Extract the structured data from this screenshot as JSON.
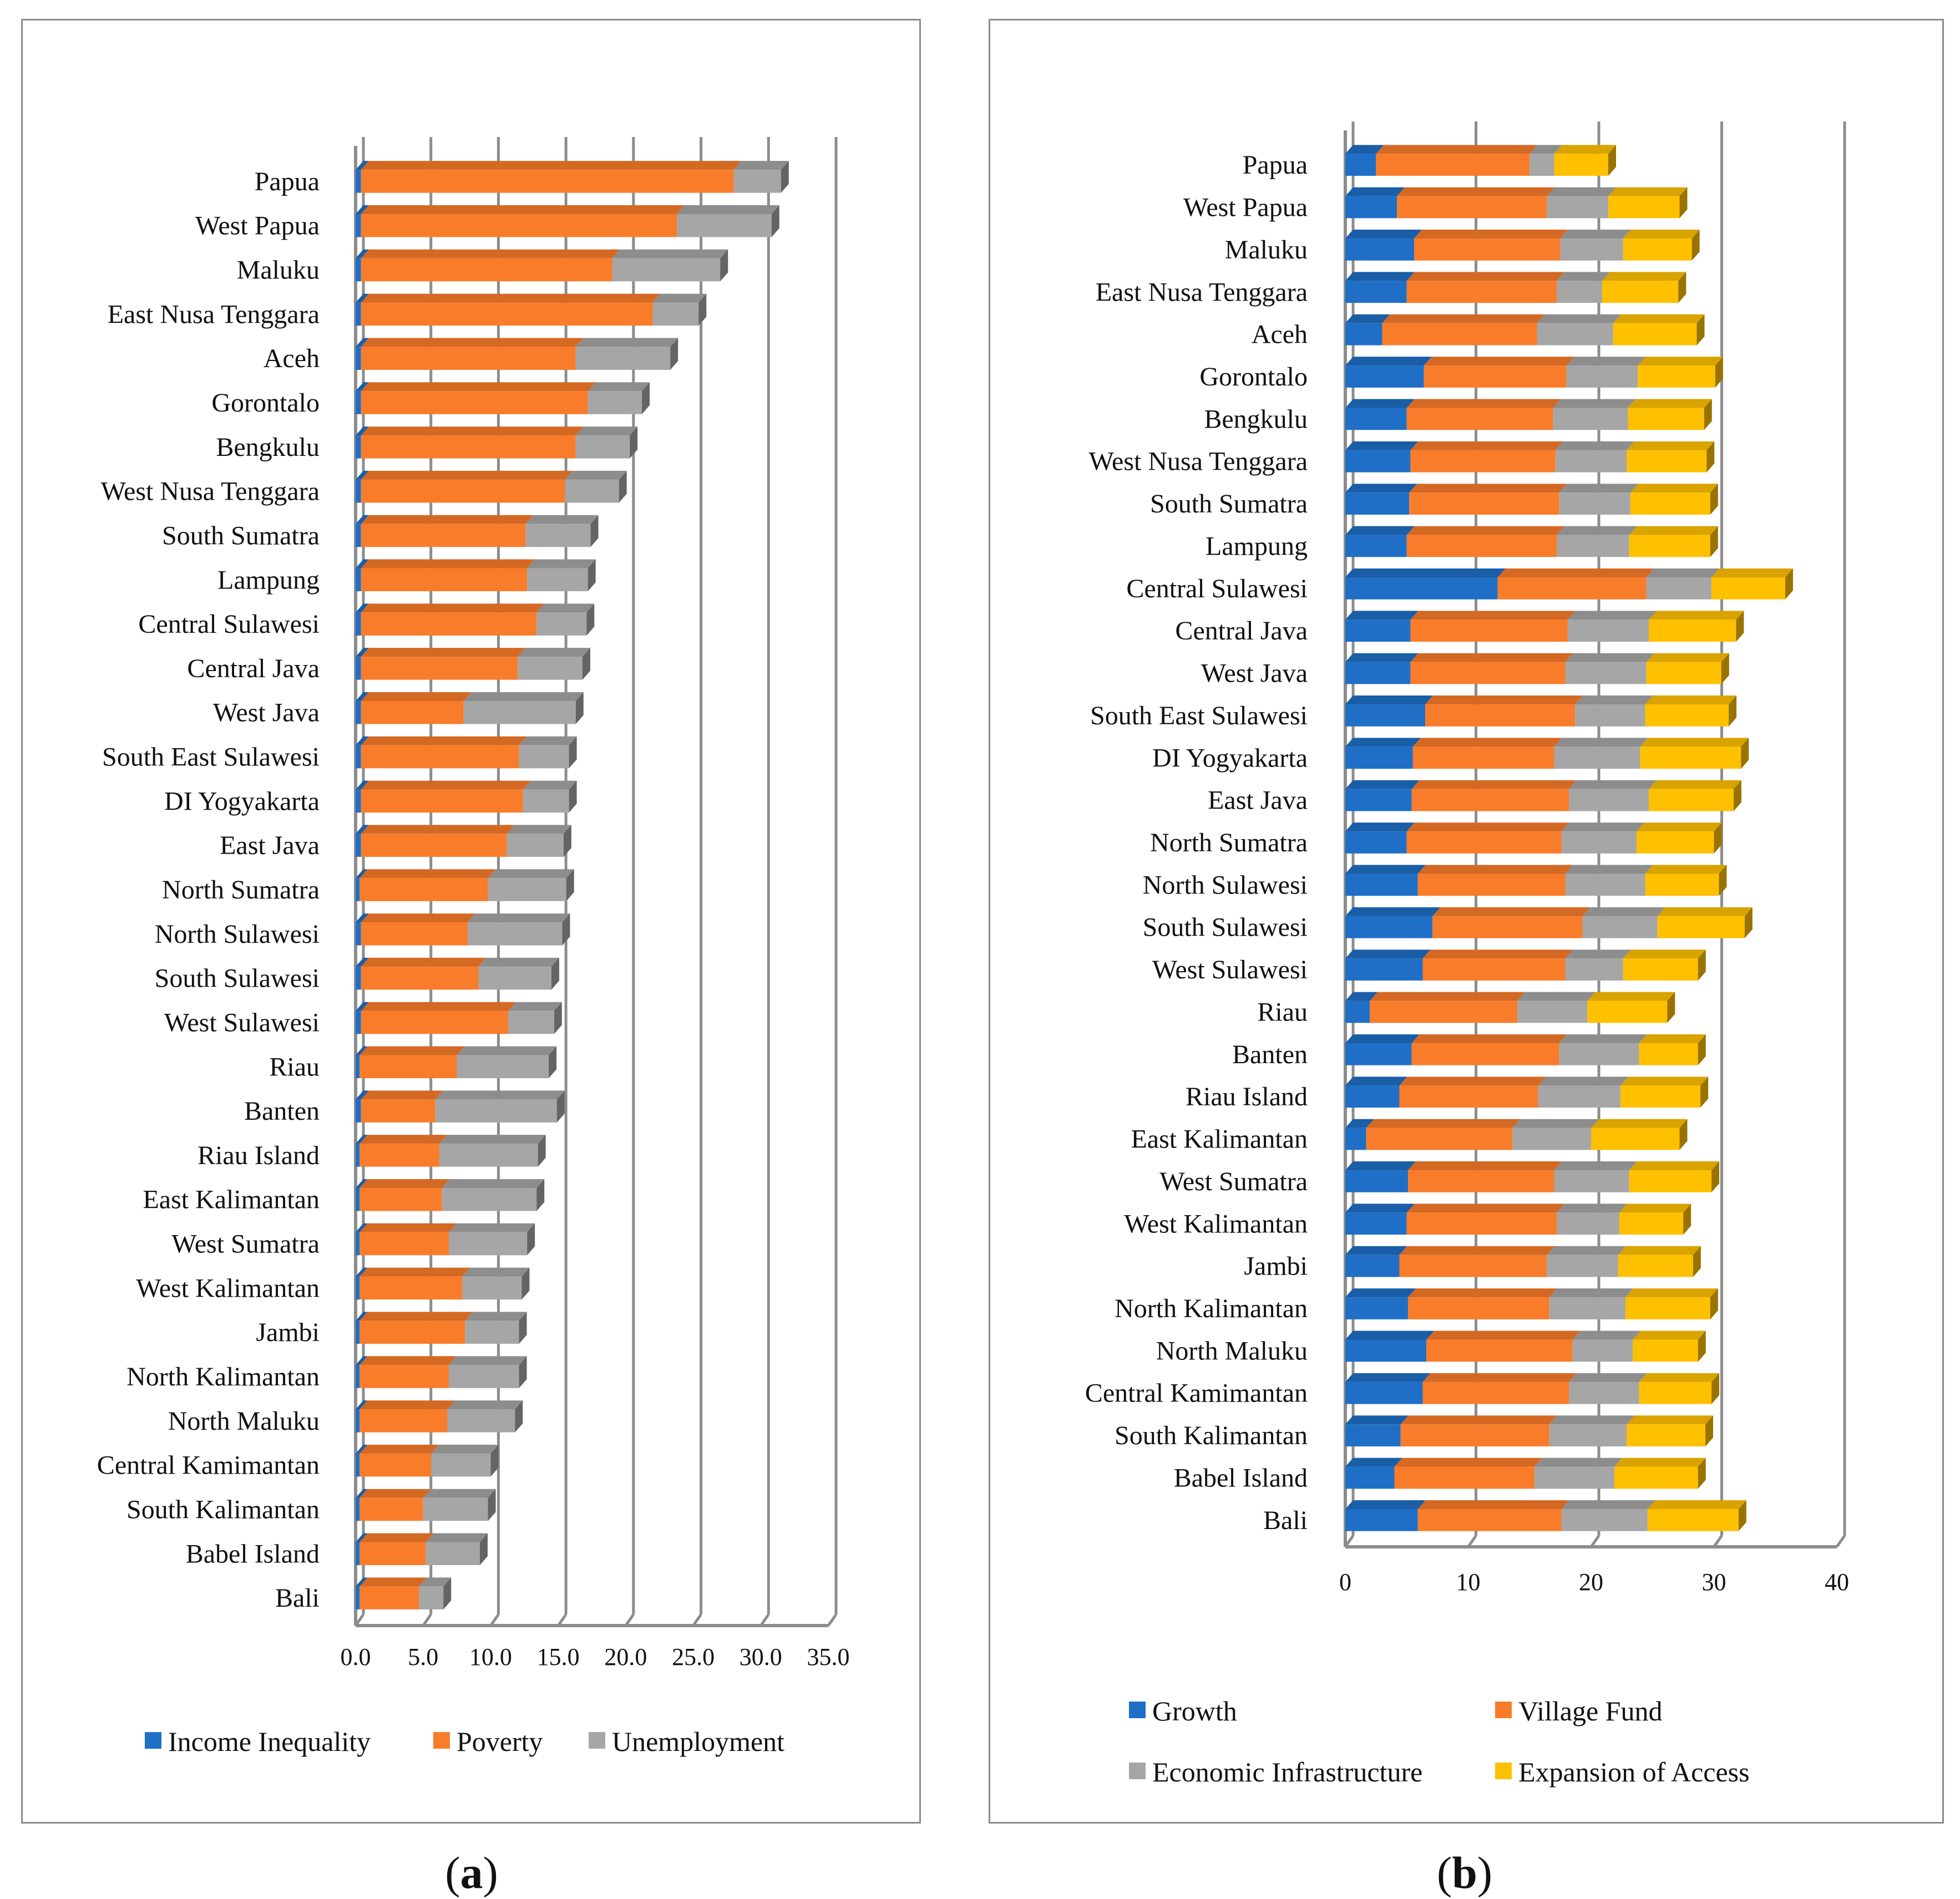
{
  "captions": {
    "a_open": "(",
    "a_letter": "a",
    "a_close": ")",
    "b_open": "(",
    "b_letter": "b",
    "b_close": ")"
  },
  "chart_data": [
    {
      "id": "a",
      "type": "bar",
      "stacked": true,
      "orientation": "horizontal",
      "title": "",
      "xlabel": "",
      "ylabel": "",
      "xlim": [
        0,
        35
      ],
      "xticks": [
        "0.0",
        "5.0",
        "10.0",
        "15.0",
        "20.0",
        "25.0",
        "30.0",
        "35.0"
      ],
      "legend": "bottom",
      "colors": [
        "#1f6fc6",
        "#f97c2a",
        "#a6a6a6"
      ],
      "categories": [
        "Papua",
        "West Papua",
        "Maluku",
        "East Nusa Tenggara",
        "Aceh",
        "Gorontalo",
        "Bengkulu",
        "West Nusa Tenggara",
        "South Sumatra",
        "Lampung",
        "Central Sulawesi",
        "Central Java",
        "West Java",
        "South East Sulawesi",
        "DI Yogyakarta",
        "East Java",
        "North Sumatra",
        "North Sulawesi",
        "South Sulawesi",
        "West Sulawesi",
        "Riau",
        "Banten",
        "Riau Island",
        "East Kalimantan",
        "West Sumatra",
        "West Kalimantan",
        "Jambi",
        "North Kalimantan",
        "North Maluku",
        "Central Kamimantan",
        "South Kalimantan",
        "Babel Island",
        "Bali"
      ],
      "series": [
        {
          "name": "Income Inequality",
          "values": [
            0.4,
            0.4,
            0.4,
            0.4,
            0.4,
            0.4,
            0.4,
            0.4,
            0.4,
            0.4,
            0.4,
            0.4,
            0.4,
            0.4,
            0.4,
            0.4,
            0.3,
            0.4,
            0.4,
            0.4,
            0.3,
            0.4,
            0.3,
            0.3,
            0.3,
            0.3,
            0.3,
            0.3,
            0.3,
            0.3,
            0.3,
            0.3,
            0.3
          ]
        },
        {
          "name": "Poverty",
          "values": [
            27.6,
            23.4,
            18.6,
            21.6,
            15.9,
            16.8,
            15.9,
            15.1,
            12.2,
            12.3,
            13.0,
            11.6,
            7.6,
            11.7,
            12.0,
            10.8,
            9.5,
            7.9,
            8.7,
            10.9,
            7.2,
            5.5,
            5.9,
            6.1,
            6.6,
            7.6,
            7.8,
            6.6,
            6.5,
            5.3,
            4.7,
            4.9,
            4.4
          ]
        },
        {
          "name": "Unemployment",
          "values": [
            3.5,
            7.0,
            8.0,
            3.4,
            7.0,
            4.0,
            4.0,
            4.0,
            4.8,
            4.5,
            3.7,
            4.8,
            8.3,
            3.7,
            3.4,
            4.2,
            5.8,
            7.0,
            5.4,
            3.4,
            6.8,
            9.0,
            7.3,
            7.0,
            5.8,
            4.4,
            4.0,
            5.2,
            5.0,
            4.4,
            4.8,
            4.0,
            1.8
          ]
        }
      ]
    },
    {
      "id": "b",
      "type": "bar",
      "stacked": true,
      "orientation": "horizontal",
      "title": "",
      "xlabel": "",
      "ylabel": "",
      "xlim": [
        0,
        40
      ],
      "xticks": [
        "0",
        "10",
        "20",
        "30",
        "40"
      ],
      "legend": "bottom",
      "colors": [
        "#1f6fc6",
        "#f97c2a",
        "#a6a6a6",
        "#ffc000"
      ],
      "categories": [
        "Papua",
        "West Papua",
        "Maluku",
        "East Nusa Tenggara",
        "Aceh",
        "Gorontalo",
        "Bengkulu",
        "West Nusa Tenggara",
        "South Sumatra",
        "Lampung",
        "Central Sulawesi",
        "Central Java",
        "West Java",
        "South East Sulawesi",
        "DI Yogyakarta",
        "East Java",
        "North Sumatra",
        "North Sulawesi",
        "South Sulawesi",
        "West Sulawesi",
        "Riau",
        "Banten",
        "Riau Island",
        "East Kalimantan",
        "West Sumatra",
        "West Kalimantan",
        "Jambi",
        "North Kalimantan",
        "North Maluku",
        "Central Kamimantan",
        "South Kalimantan",
        "Babel Island",
        "Bali"
      ],
      "series": [
        {
          "name": "Growth",
          "values": [
            2.5,
            4.2,
            5.6,
            5.0,
            3.0,
            6.4,
            5.0,
            5.3,
            5.2,
            5.0,
            12.4,
            5.3,
            5.3,
            6.5,
            5.5,
            5.4,
            5.0,
            5.9,
            7.1,
            6.3,
            2.0,
            5.4,
            4.4,
            1.7,
            5.1,
            5.0,
            4.4,
            5.1,
            6.6,
            6.3,
            4.5,
            4.0,
            5.9
          ]
        },
        {
          "name": "Village Fund",
          "values": [
            12.5,
            12.2,
            11.9,
            12.2,
            12.6,
            11.6,
            11.9,
            11.8,
            12.2,
            12.2,
            12.1,
            12.8,
            12.6,
            12.2,
            11.5,
            12.8,
            12.6,
            12.0,
            12.2,
            11.6,
            12.0,
            12.0,
            11.3,
            11.9,
            11.9,
            12.2,
            12.0,
            11.5,
            11.9,
            11.9,
            12.1,
            11.4,
            11.7
          ]
        },
        {
          "name": "Economic Infrastructure",
          "values": [
            2.0,
            5.0,
            5.1,
            3.7,
            6.2,
            5.8,
            6.1,
            5.8,
            5.8,
            5.9,
            5.3,
            6.6,
            6.6,
            5.7,
            7.0,
            6.5,
            6.1,
            6.5,
            6.1,
            4.7,
            5.7,
            6.5,
            6.7,
            6.4,
            6.1,
            5.1,
            5.8,
            6.2,
            4.9,
            5.7,
            6.3,
            6.5,
            7.0
          ]
        },
        {
          "name": "Expansion of Access",
          "values": [
            4.4,
            5.8,
            5.6,
            6.2,
            6.8,
            6.3,
            6.2,
            6.5,
            6.5,
            6.6,
            6.0,
            7.1,
            6.1,
            6.8,
            8.2,
            6.9,
            6.3,
            6.0,
            7.1,
            6.1,
            6.5,
            4.8,
            6.5,
            7.2,
            6.7,
            5.2,
            6.1,
            6.9,
            5.3,
            5.9,
            6.4,
            6.8,
            7.4
          ]
        }
      ]
    }
  ]
}
